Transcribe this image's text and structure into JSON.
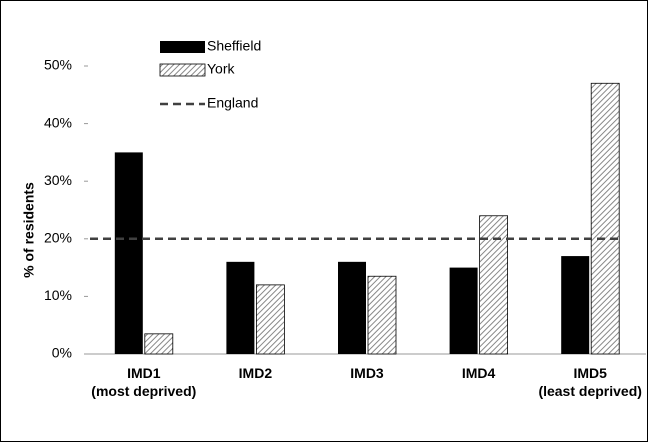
{
  "chart_data": {
    "type": "bar",
    "y_label": "% of residents",
    "categories": [
      "IMD1\n(most deprived)",
      "IMD2",
      "IMD3",
      "IMD4",
      "IMD5\n(least deprived)"
    ],
    "series": [
      {
        "name": "Sheffield",
        "color": "#000000",
        "values": [
          35,
          16,
          16,
          15,
          17
        ]
      },
      {
        "name": "York",
        "color": "#a0a0a0",
        "pattern": "hatch",
        "values": [
          3.5,
          12,
          13.5,
          24,
          47
        ]
      }
    ],
    "reference_line": {
      "name": "England",
      "color": "#404040",
      "value": 20
    },
    "ylim": [
      0,
      50
    ],
    "yticks": [
      {
        "value": 0,
        "label": "0%"
      },
      {
        "value": 10,
        "label": "10%"
      },
      {
        "value": 20,
        "label": "20%"
      },
      {
        "value": 30,
        "label": "30%"
      },
      {
        "value": 40,
        "label": "40%"
      },
      {
        "value": 50,
        "label": "50%"
      }
    ],
    "grid": false
  }
}
